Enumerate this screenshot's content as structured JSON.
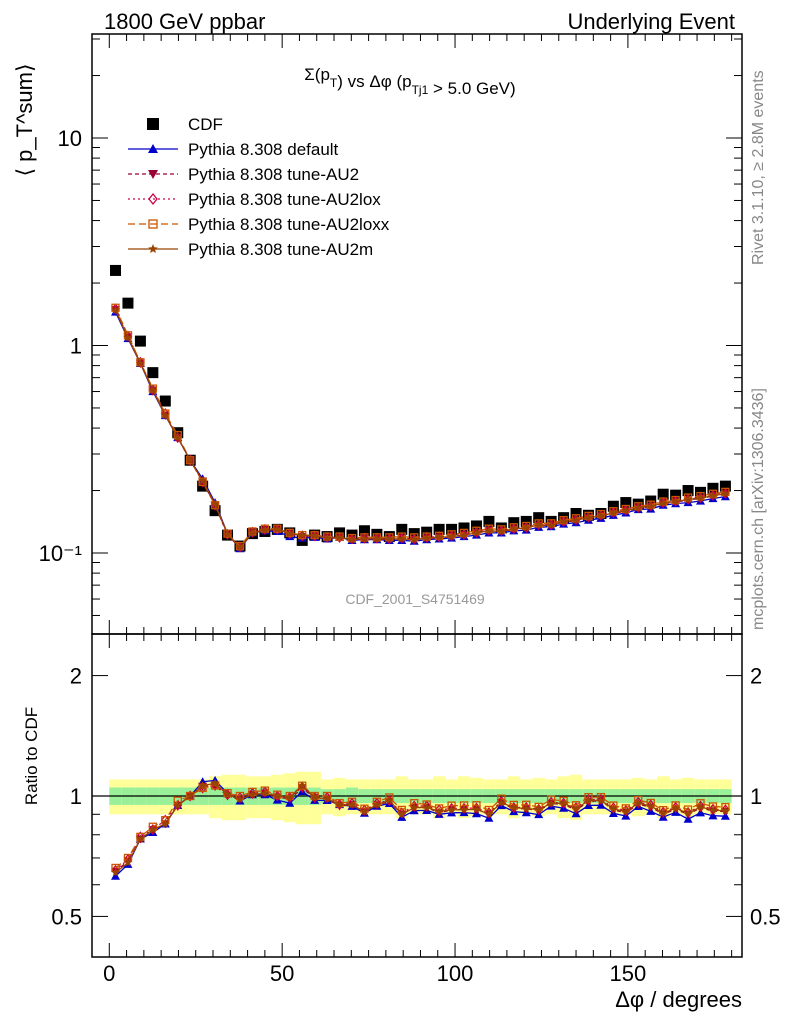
{
  "header": {
    "left": "1800 GeV ppbar",
    "right": "Underlying Event"
  },
  "side_text": {
    "rivet": "Rivet 3.1.10, ≥ 2.8M events",
    "mcplots": "mcplots.cern.ch [arXiv:1306.3436]"
  },
  "colors": {
    "CDF": "#000000",
    "default": "#0000cc",
    "AU2": "#990033",
    "AU2lox": "#cc0044",
    "AU2loxx": "#cc5500",
    "AU2m": "#994400",
    "band_inner": "#99f099",
    "band_outer": "#ffff99"
  },
  "chart_data": {
    "type": "scatter",
    "title": "Σ(p_T) vs Δφ (p_Tj1 > 5.0 GeV)",
    "analysis_label": "CDF_2001_S4751469",
    "xlabel": "Δφ / degrees",
    "ylabel": "⟨ p_T^sum⟩",
    "ratio_ylabel": "Ratio to CDF",
    "xlim": [
      -5,
      183
    ],
    "ylim": [
      0.04,
      30
    ],
    "ylog": true,
    "ratio_ylim": [
      0.4,
      2.4
    ],
    "ratio_ylog": true,
    "x_ticks": [
      "0",
      "50",
      "100",
      "150"
    ],
    "y_ticks": [
      "10",
      "1",
      "10⁻¹"
    ],
    "ratio_ticks": [
      "2",
      "1",
      "0.5"
    ],
    "legend_position": "top-left",
    "x": [
      1.8,
      5.4,
      9,
      12.6,
      16.2,
      19.8,
      23.4,
      27,
      30.6,
      34.2,
      37.8,
      41.4,
      45,
      48.6,
      52.2,
      55.8,
      59.4,
      63,
      66.6,
      70.2,
      73.8,
      77.4,
      81,
      84.6,
      88.2,
      91.8,
      95.4,
      99,
      102.6,
      106.2,
      109.8,
      113.4,
      117,
      120.6,
      124.2,
      127.8,
      131.4,
      135,
      138.6,
      142.2,
      145.8,
      149.4,
      153,
      156.6,
      160.2,
      163.8,
      167.4,
      171,
      174.6,
      178.2
    ],
    "series": [
      {
        "name": "CDF",
        "key": "CDF",
        "marker": "square",
        "values": [
          2.3,
          1.6,
          1.05,
          0.74,
          0.54,
          0.38,
          0.28,
          0.21,
          0.16,
          0.122,
          0.108,
          0.124,
          0.127,
          0.13,
          0.125,
          0.115,
          0.122,
          0.12,
          0.125,
          0.122,
          0.128,
          0.123,
          0.12,
          0.13,
          0.124,
          0.126,
          0.13,
          0.13,
          0.132,
          0.135,
          0.142,
          0.132,
          0.14,
          0.142,
          0.148,
          0.142,
          0.148,
          0.155,
          0.152,
          0.155,
          0.168,
          0.175,
          0.172,
          0.178,
          0.192,
          0.19,
          0.2,
          0.196,
          0.205,
          0.21
        ]
      },
      {
        "name": "Pythia 8.308 default",
        "key": "default",
        "marker": "triangle-up",
        "values": [
          1.45,
          1.08,
          0.82,
          0.6,
          0.46,
          0.36,
          0.28,
          0.228,
          0.175,
          0.124,
          0.105,
          0.125,
          0.128,
          0.127,
          0.12,
          0.118,
          0.119,
          0.117,
          0.119,
          0.115,
          0.116,
          0.116,
          0.115,
          0.115,
          0.114,
          0.116,
          0.117,
          0.118,
          0.12,
          0.122,
          0.125,
          0.125,
          0.128,
          0.129,
          0.133,
          0.134,
          0.138,
          0.14,
          0.144,
          0.147,
          0.152,
          0.156,
          0.162,
          0.163,
          0.17,
          0.173,
          0.175,
          0.178,
          0.183,
          0.187
        ]
      },
      {
        "name": "Pythia 8.308 tune-AU2",
        "key": "AU2",
        "marker": "triangle-down",
        "values": [
          1.49,
          1.1,
          0.82,
          0.61,
          0.46,
          0.36,
          0.28,
          0.222,
          0.17,
          0.122,
          0.106,
          0.125,
          0.129,
          0.129,
          0.123,
          0.12,
          0.121,
          0.118,
          0.118,
          0.116,
          0.117,
          0.117,
          0.116,
          0.117,
          0.116,
          0.118,
          0.118,
          0.12,
          0.122,
          0.125,
          0.128,
          0.127,
          0.13,
          0.132,
          0.136,
          0.136,
          0.141,
          0.143,
          0.147,
          0.151,
          0.155,
          0.159,
          0.164,
          0.167,
          0.173,
          0.176,
          0.18,
          0.183,
          0.188,
          0.192
        ]
      },
      {
        "name": "Pythia 8.308 tune-AU2lox",
        "key": "AU2lox",
        "marker": "diamond-open",
        "values": [
          1.5,
          1.11,
          0.83,
          0.61,
          0.47,
          0.36,
          0.28,
          0.22,
          0.17,
          0.123,
          0.107,
          0.126,
          0.13,
          0.13,
          0.124,
          0.121,
          0.121,
          0.119,
          0.119,
          0.117,
          0.118,
          0.118,
          0.117,
          0.118,
          0.117,
          0.119,
          0.12,
          0.121,
          0.123,
          0.126,
          0.129,
          0.128,
          0.131,
          0.133,
          0.137,
          0.137,
          0.142,
          0.145,
          0.149,
          0.152,
          0.157,
          0.161,
          0.166,
          0.169,
          0.175,
          0.178,
          0.182,
          0.185,
          0.19,
          0.194
        ]
      },
      {
        "name": "Pythia 8.308 tune-AU2loxx",
        "key": "AU2loxx",
        "marker": "square-open",
        "values": [
          1.52,
          1.12,
          0.83,
          0.62,
          0.47,
          0.37,
          0.28,
          0.22,
          0.17,
          0.124,
          0.108,
          0.127,
          0.131,
          0.131,
          0.125,
          0.122,
          0.122,
          0.12,
          0.12,
          0.118,
          0.119,
          0.119,
          0.119,
          0.12,
          0.119,
          0.12,
          0.121,
          0.123,
          0.125,
          0.128,
          0.131,
          0.13,
          0.133,
          0.135,
          0.139,
          0.139,
          0.144,
          0.147,
          0.151,
          0.154,
          0.159,
          0.163,
          0.168,
          0.171,
          0.177,
          0.18,
          0.185,
          0.188,
          0.193,
          0.197
        ]
      },
      {
        "name": "Pythia 8.308 tune-AU2m",
        "key": "AU2m",
        "marker": "star",
        "values": [
          1.48,
          1.09,
          0.82,
          0.61,
          0.46,
          0.36,
          0.28,
          0.223,
          0.172,
          0.123,
          0.106,
          0.125,
          0.129,
          0.13,
          0.124,
          0.122,
          0.121,
          0.118,
          0.119,
          0.116,
          0.117,
          0.117,
          0.117,
          0.117,
          0.116,
          0.118,
          0.119,
          0.12,
          0.122,
          0.125,
          0.128,
          0.127,
          0.131,
          0.132,
          0.137,
          0.136,
          0.142,
          0.144,
          0.148,
          0.151,
          0.156,
          0.16,
          0.165,
          0.168,
          0.174,
          0.177,
          0.181,
          0.184,
          0.189,
          0.193
        ]
      }
    ],
    "ratio_band": {
      "inner_half": [
        0.05,
        0.05,
        0.05,
        0.05,
        0.05,
        0.05,
        0.05,
        0.05,
        0.05,
        0.05,
        0.05,
        0.05,
        0.05,
        0.05,
        0.05,
        0.05,
        0.05,
        0.04,
        0.04,
        0.05,
        0.04,
        0.04,
        0.04,
        0.04,
        0.04,
        0.04,
        0.04,
        0.04,
        0.04,
        0.04,
        0.04,
        0.04,
        0.04,
        0.04,
        0.04,
        0.04,
        0.04,
        0.04,
        0.04,
        0.04,
        0.04,
        0.04,
        0.04,
        0.04,
        0.04,
        0.04,
        0.04,
        0.04,
        0.04,
        0.04
      ],
      "outer_half": [
        0.1,
        0.1,
        0.1,
        0.1,
        0.1,
        0.1,
        0.1,
        0.1,
        0.12,
        0.13,
        0.13,
        0.12,
        0.12,
        0.13,
        0.14,
        0.15,
        0.15,
        0.1,
        0.11,
        0.1,
        0.1,
        0.1,
        0.1,
        0.12,
        0.1,
        0.1,
        0.12,
        0.1,
        0.12,
        0.11,
        0.1,
        0.1,
        0.12,
        0.1,
        0.11,
        0.1,
        0.12,
        0.13,
        0.1,
        0.1,
        0.1,
        0.1,
        0.11,
        0.1,
        0.12,
        0.1,
        0.11,
        0.1,
        0.1,
        0.1
      ]
    }
  }
}
